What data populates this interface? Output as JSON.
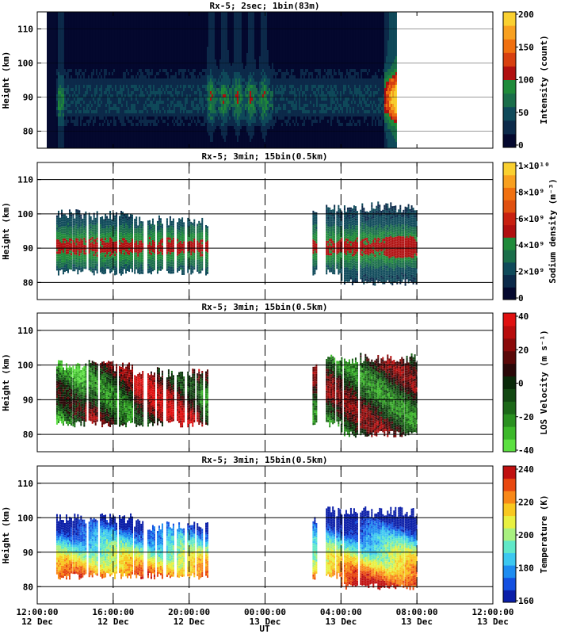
{
  "xaxis": {
    "label": "UT",
    "ticks": [
      {
        "h": 12,
        "time": "12:00:00",
        "date": "12 Dec"
      },
      {
        "h": 16,
        "time": "16:00:00",
        "date": "12 Dec"
      },
      {
        "h": 20,
        "time": "20:00:00",
        "date": "12 Dec"
      },
      {
        "h": 24,
        "time": "00:00:00",
        "date": "13 Dec"
      },
      {
        "h": 28,
        "time": "04:00:00",
        "date": "13 Dec"
      },
      {
        "h": 32,
        "time": "08:00:00",
        "date": "13 Dec"
      },
      {
        "h": 36,
        "time": "12:00:00",
        "date": "13 Dec"
      }
    ]
  },
  "chart_data": [
    {
      "type": "heatmap",
      "title": "Rx-5;  2sec; 1bin(83m)",
      "ylabel": "Height (km)",
      "ylim": [
        75,
        115
      ],
      "yticks": [
        80,
        90,
        100,
        110
      ],
      "xlim_hours_ut": [
        12,
        36
      ],
      "grid": "horizontal",
      "colorbar": {
        "label": "Intensity (count)",
        "ticks": [
          "0",
          "50",
          "100",
          "150",
          "200"
        ],
        "colors": [
          "#04082e",
          "#0c2a4a",
          "#0f4a5a",
          "#1a6e4a",
          "#1f8a3a",
          "#b01010",
          "#d84010",
          "#f07010",
          "#f8a020",
          "#fad030"
        ]
      },
      "data_extent_hours_ut": [
        13.0,
        30.9
      ]
    },
    {
      "type": "heatmap",
      "title": "Rx-5; 3min; 15bin(0.5km)",
      "ylabel": "Height (km)",
      "ylim": [
        75,
        115
      ],
      "yticks": [
        80,
        90,
        100,
        110
      ],
      "xlim_hours_ut": [
        12,
        36
      ],
      "grid": "horizontal",
      "dashed_vlines_hours_ut": [
        16,
        20,
        24,
        28,
        32
      ],
      "colorbar": {
        "label": "Sodium density (m⁻³)",
        "ticks": [
          "0",
          "2×10⁹",
          "4×10⁹",
          "6×10⁹",
          "8×10⁹",
          "1×10¹⁰"
        ],
        "colors": [
          "#04082e",
          "#0c2a4a",
          "#0f4a5a",
          "#1a6e4a",
          "#1f8a3a",
          "#b01010",
          "#c82010",
          "#e05010",
          "#f07010",
          "#f8a020",
          "#fad030"
        ]
      },
      "data_extent_hours_ut": [
        13.0,
        32.0
      ]
    },
    {
      "type": "heatmap",
      "title": "Rx-5; 3min; 15bin(0.5km)",
      "ylabel": "Height (km)",
      "ylim": [
        75,
        115
      ],
      "yticks": [
        80,
        90,
        100,
        110
      ],
      "xlim_hours_ut": [
        12,
        36
      ],
      "grid": "horizontal",
      "dashed_vlines_hours_ut": [
        16,
        20,
        24,
        28,
        32
      ],
      "colorbar": {
        "label": "LOS Velocity (m s⁻¹)",
        "ticks": [
          "-40",
          "-20",
          "0",
          "20",
          "40"
        ],
        "colors": [
          "#5be040",
          "#3cb82a",
          "#2a9020",
          "#1c6818",
          "#124812",
          "#0a2a0a",
          "#2a0808",
          "#5a0808",
          "#8a0a0a",
          "#b80c0c",
          "#e01010"
        ]
      },
      "data_extent_hours_ut": [
        13.0,
        32.0
      ]
    },
    {
      "type": "heatmap",
      "title": "Rx-5; 3min; 15bin(0.5km)",
      "ylabel": "Height (km)",
      "ylim": [
        75,
        115
      ],
      "yticks": [
        80,
        90,
        100,
        110
      ],
      "xlim_hours_ut": [
        12,
        36
      ],
      "grid": "horizontal",
      "dashed_vlines_hours_ut": [
        16,
        20,
        24,
        28,
        32
      ],
      "colorbar": {
        "label": "Temperature (K)",
        "ticks": [
          "160",
          "180",
          "200",
          "220",
          "240"
        ],
        "colors": [
          "#0a1ea8",
          "#1450e0",
          "#1e8cf0",
          "#3cc8f0",
          "#60e8c8",
          "#a8f080",
          "#e8f040",
          "#f8c820",
          "#f88818",
          "#e84810",
          "#c01010"
        ]
      },
      "data_extent_hours_ut": [
        13.0,
        32.0
      ]
    }
  ]
}
